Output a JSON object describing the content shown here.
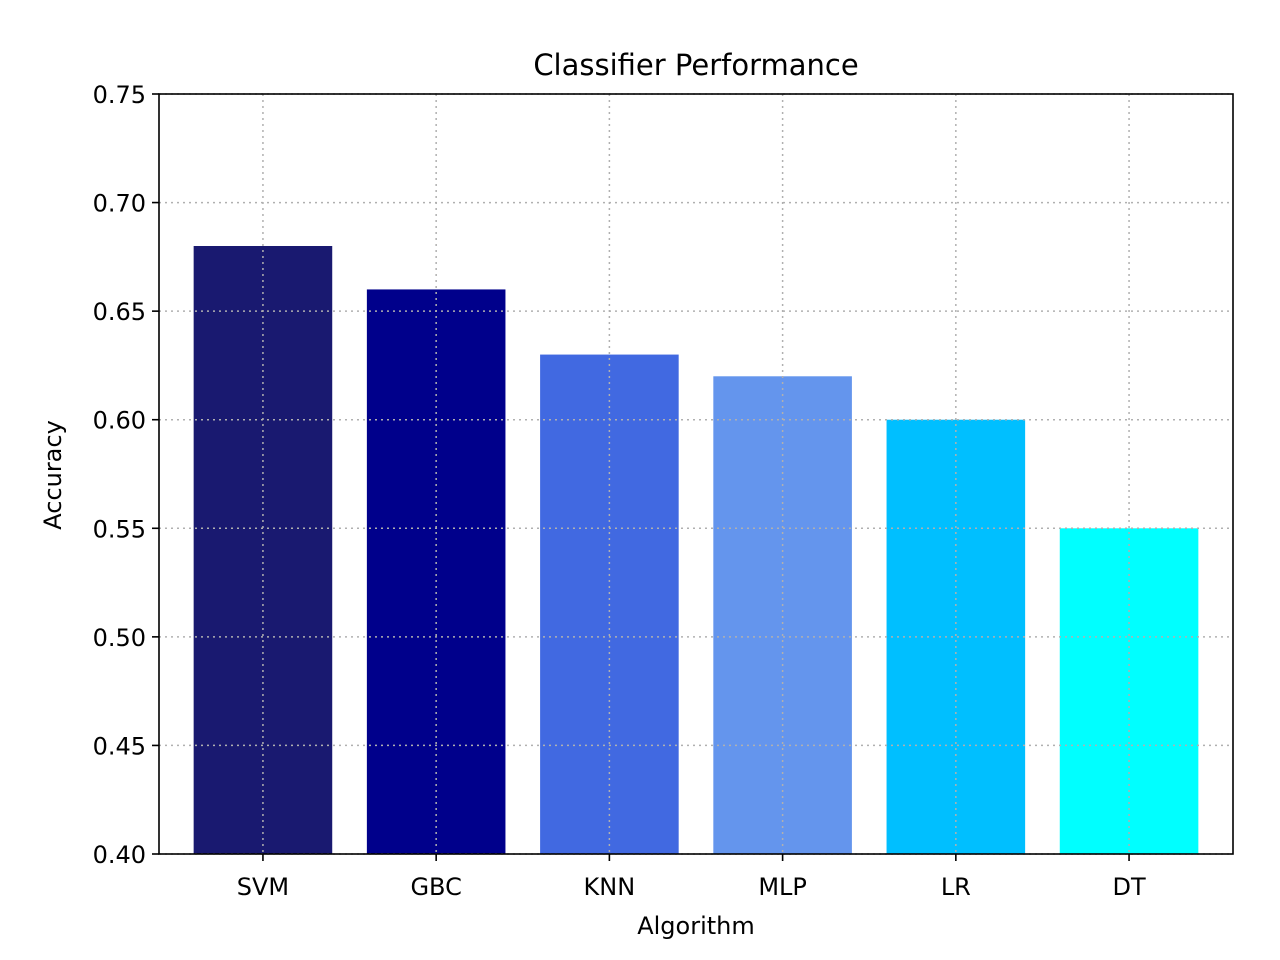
{
  "chart_data": {
    "type": "bar",
    "title": "Classifier Performance",
    "xlabel": "Algorithm",
    "ylabel": "Accuracy",
    "categories": [
      "SVM",
      "GBC",
      "KNN",
      "MLP",
      "LR",
      "DT"
    ],
    "values": [
      0.68,
      0.66,
      0.63,
      0.62,
      0.6,
      0.55
    ],
    "colors": [
      "#191970",
      "#00008b",
      "#4169e1",
      "#6495ed",
      "#00bfff",
      "#00ffff"
    ],
    "ylim": [
      0.4,
      0.75
    ],
    "yticks": [
      "0.40",
      "0.45",
      "0.50",
      "0.55",
      "0.60",
      "0.65",
      "0.70",
      "0.75"
    ],
    "grid": true,
    "grid_style": "dotted",
    "legend": "none"
  }
}
